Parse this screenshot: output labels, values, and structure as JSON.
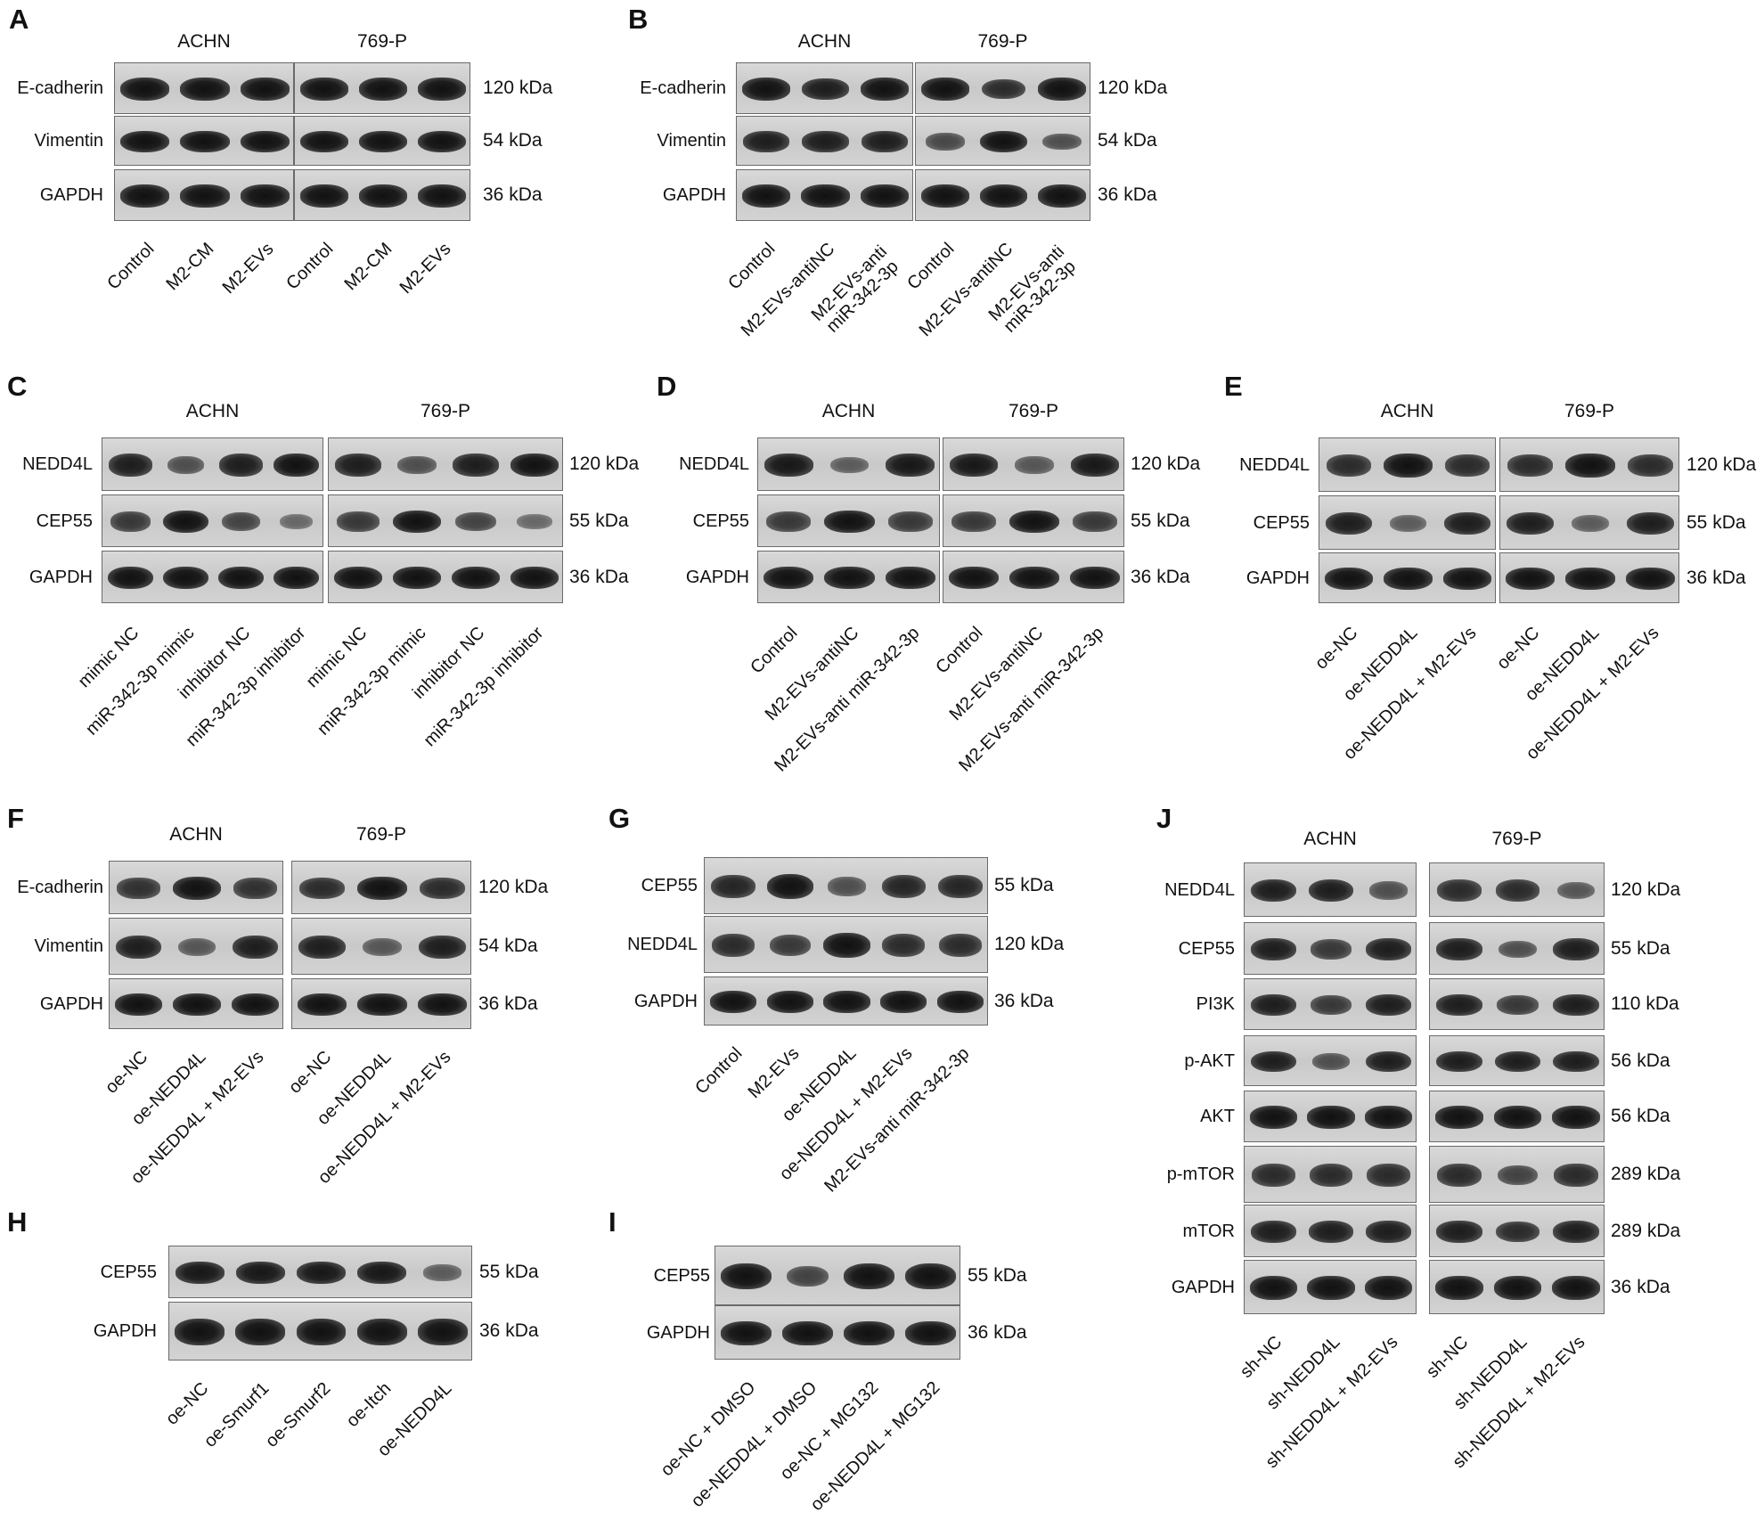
{
  "panels": [
    {
      "letter": "A",
      "cells": [
        "ACHN",
        "769-P"
      ],
      "rows": [
        {
          "protein": "E-cadherin",
          "kda": "120 kDa"
        },
        {
          "protein": "Vimentin",
          "kda": "54 kDa"
        },
        {
          "protein": "GAPDH",
          "kda": "36 kDa"
        }
      ],
      "lanes": [
        [
          "Control",
          "M2-CM",
          "M2-EVs"
        ],
        [
          "Control",
          "M2-CM",
          "M2-EVs"
        ]
      ],
      "band_intensity": [
        [
          [
            1,
            1,
            1
          ],
          [
            1,
            1,
            1
          ]
        ],
        [
          [
            1,
            1,
            1
          ],
          [
            1,
            1,
            1
          ]
        ],
        [
          [
            1,
            1,
            1
          ],
          [
            1,
            1,
            1
          ]
        ]
      ]
    },
    {
      "letter": "B",
      "cells": [
        "ACHN",
        "769-P"
      ],
      "rows": [
        {
          "protein": "E-cadherin",
          "kda": "120 kDa"
        },
        {
          "protein": "Vimentin",
          "kda": "54 kDa"
        },
        {
          "protein": "GAPDH",
          "kda": "36 kDa"
        }
      ],
      "lanes": [
        [
          "Control",
          "M2-EVs-antiNC",
          "M2-EVs-anti\nmiR-342-3p"
        ],
        [
          "Control",
          "M2-EVs-antiNC",
          "M2-EVs-anti\nmiR-342-3p"
        ]
      ],
      "band_intensity": [
        [
          [
            1,
            0.9,
            1
          ],
          [
            1,
            0.8,
            1
          ]
        ],
        [
          [
            0.9,
            0.9,
            0.9
          ],
          [
            0.55,
            1,
            0.5
          ]
        ],
        [
          [
            1,
            1,
            1
          ],
          [
            1,
            1,
            1
          ]
        ]
      ]
    },
    {
      "letter": "C",
      "cells": [
        "ACHN",
        "769-P"
      ],
      "rows": [
        {
          "protein": "NEDD4L",
          "kda": "120 kDa"
        },
        {
          "protein": "CEP55",
          "kda": "55 kDa"
        },
        {
          "protein": "GAPDH",
          "kda": "36 kDa"
        }
      ],
      "lanes": [
        [
          "mimic NC",
          "miR-342-3p mimic",
          "inhibitor NC",
          "miR-342-3p  inhibitor"
        ],
        [
          "mimic NC",
          "miR-342-3p mimic",
          "inhibitor NC",
          "miR-342-3p  inhibitor"
        ]
      ],
      "band_intensity": [
        [
          [
            0.9,
            0.5,
            0.9,
            1
          ],
          [
            0.9,
            0.5,
            0.9,
            1
          ]
        ],
        [
          [
            0.7,
            1,
            0.6,
            0.3
          ],
          [
            0.7,
            1,
            0.6,
            0.3
          ]
        ],
        [
          [
            1,
            1,
            1,
            1
          ],
          [
            1,
            1,
            1,
            1
          ]
        ]
      ]
    },
    {
      "letter": "D",
      "cells": [
        "ACHN",
        "769-P"
      ],
      "rows": [
        {
          "protein": "NEDD4L",
          "kda": "120 kDa"
        },
        {
          "protein": "CEP55",
          "kda": "55 kDa"
        },
        {
          "protein": "GAPDH",
          "kda": "36 kDa"
        }
      ],
      "lanes": [
        [
          "Control",
          "M2-EVs-antiNC",
          "M2-EVs-anti miR-342-3p"
        ],
        [
          "Control",
          "M2-EVs-antiNC",
          "M2-EVs-anti miR-342-3p"
        ]
      ],
      "band_intensity": [
        [
          [
            0.95,
            0.4,
            0.95
          ],
          [
            0.95,
            0.45,
            0.95
          ]
        ],
        [
          [
            0.7,
            1,
            0.7
          ],
          [
            0.7,
            1,
            0.7
          ]
        ],
        [
          [
            1,
            1,
            1
          ],
          [
            1,
            1,
            1
          ]
        ]
      ]
    },
    {
      "letter": "E",
      "cells": [
        "ACHN",
        "769-P"
      ],
      "rows": [
        {
          "protein": "NEDD4L",
          "kda": "120 kDa"
        },
        {
          "protein": "CEP55",
          "kda": "55 kDa"
        },
        {
          "protein": "GAPDH",
          "kda": "36 kDa"
        }
      ],
      "lanes": [
        [
          "oe-NC",
          "oe-NEDD4L",
          "oe-NEDD4L + M2-EVs"
        ],
        [
          "oe-NC",
          "oe-NEDD4L",
          "oe-NEDD4L + M2-EVs"
        ]
      ],
      "band_intensity": [
        [
          [
            0.8,
            1,
            0.8
          ],
          [
            0.8,
            1,
            0.8
          ]
        ],
        [
          [
            0.9,
            0.4,
            0.9
          ],
          [
            0.9,
            0.4,
            0.9
          ]
        ],
        [
          [
            1,
            1,
            1
          ],
          [
            1,
            1,
            1
          ]
        ]
      ]
    },
    {
      "letter": "F",
      "cells": [
        "ACHN",
        "769-P"
      ],
      "rows": [
        {
          "protein": "E-cadherin",
          "kda": "120 kDa"
        },
        {
          "protein": "Vimentin",
          "kda": "54 kDa"
        },
        {
          "protein": "GAPDH",
          "kda": "36 kDa"
        }
      ],
      "lanes": [
        [
          "oe-NC",
          "oe-NEDD4L",
          "oe-NEDD4L + M2-EVs"
        ],
        [
          "oe-NC",
          "oe-NEDD4L",
          "oe-NEDD4L + M2-EVs"
        ]
      ],
      "band_intensity": [
        [
          [
            0.75,
            1,
            0.75
          ],
          [
            0.8,
            1,
            0.8
          ]
        ],
        [
          [
            0.9,
            0.45,
            0.9
          ],
          [
            0.9,
            0.45,
            0.9
          ]
        ],
        [
          [
            1,
            1,
            1
          ],
          [
            1,
            1,
            1
          ]
        ]
      ]
    },
    {
      "letter": "G",
      "cells": [],
      "rows": [
        {
          "protein": "CEP55",
          "kda": "55 kDa"
        },
        {
          "protein": "NEDD4L",
          "kda": "120 kDa"
        },
        {
          "protein": "GAPDH",
          "kda": "36 kDa"
        }
      ],
      "lanes": [
        [
          "Control",
          "M2-EVs",
          "oe-NEDD4L",
          "oe-NEDD4L + M2-EVs",
          "M2-EVs-anti miR-342-3p"
        ]
      ],
      "band_intensity": [
        [
          [
            0.85,
            1,
            0.5,
            0.85,
            0.85
          ]
        ],
        [
          [
            0.8,
            0.7,
            1,
            0.8,
            0.8
          ]
        ],
        [
          [
            1,
            1,
            1,
            1,
            1
          ]
        ]
      ]
    },
    {
      "letter": "H",
      "cells": [],
      "rows": [
        {
          "protein": "CEP55",
          "kda": "55 kDa"
        },
        {
          "protein": "GAPDH",
          "kda": "36 kDa"
        }
      ],
      "lanes": [
        [
          "oe-NC",
          "oe-Smurf1",
          "oe-Smurf2",
          "oe-Itch",
          "oe-NEDD4L"
        ]
      ],
      "band_intensity": [
        [
          [
            0.95,
            0.95,
            0.95,
            0.95,
            0.4
          ]
        ],
        [
          [
            1,
            1,
            1,
            1,
            1
          ]
        ]
      ]
    },
    {
      "letter": "I",
      "cells": [],
      "rows": [
        {
          "protein": "CEP55",
          "kda": "55 kDa"
        },
        {
          "protein": "GAPDH",
          "kda": "36 kDa"
        }
      ],
      "lanes": [
        [
          "oe-NC + DMSO",
          "oe-NEDD4L + DMSO",
          "oe-NC + MG132",
          "oe-NEDD4L + MG132"
        ]
      ],
      "band_intensity": [
        [
          [
            1,
            0.6,
            1,
            1
          ]
        ],
        [
          [
            1,
            1,
            1,
            1
          ]
        ]
      ]
    },
    {
      "letter": "J",
      "cells": [
        "ACHN",
        "769-P"
      ],
      "rows": [
        {
          "protein": "NEDD4L",
          "kda": "120 kDa"
        },
        {
          "protein": "CEP55",
          "kda": "55 kDa"
        },
        {
          "protein": "PI3K",
          "kda": "110 kDa"
        },
        {
          "protein": "p-AKT",
          "kda": "56 kDa"
        },
        {
          "protein": "AKT",
          "kda": "56 kDa"
        },
        {
          "protein": "p-mTOR",
          "kda": "289 kDa"
        },
        {
          "protein": "mTOR",
          "kda": "289 kDa"
        },
        {
          "protein": "GAPDH",
          "kda": "36 kDa"
        }
      ],
      "lanes": [
        [
          "sh-NC",
          "sh-NEDD4L",
          "sh-NEDD4L + M2-EVs"
        ],
        [
          "sh-NC",
          "sh-NEDD4L",
          "sh-NEDD4L + M2-EVs"
        ]
      ],
      "band_intensity": [
        [
          [
            0.9,
            0.9,
            0.5
          ],
          [
            0.8,
            0.8,
            0.45
          ]
        ],
        [
          [
            0.9,
            0.7,
            0.9
          ],
          [
            0.9,
            0.5,
            0.9
          ]
        ],
        [
          [
            0.9,
            0.7,
            0.9
          ],
          [
            0.9,
            0.7,
            0.9
          ]
        ],
        [
          [
            0.9,
            0.5,
            0.9
          ],
          [
            0.9,
            0.9,
            0.9
          ]
        ],
        [
          [
            1,
            1,
            1
          ],
          [
            1,
            1,
            1
          ]
        ],
        [
          [
            0.8,
            0.8,
            0.8
          ],
          [
            0.8,
            0.6,
            0.8
          ]
        ],
        [
          [
            0.9,
            0.9,
            0.9
          ],
          [
            0.9,
            0.8,
            0.9
          ]
        ],
        [
          [
            1,
            1,
            1
          ],
          [
            1,
            1,
            1
          ]
        ]
      ]
    }
  ]
}
